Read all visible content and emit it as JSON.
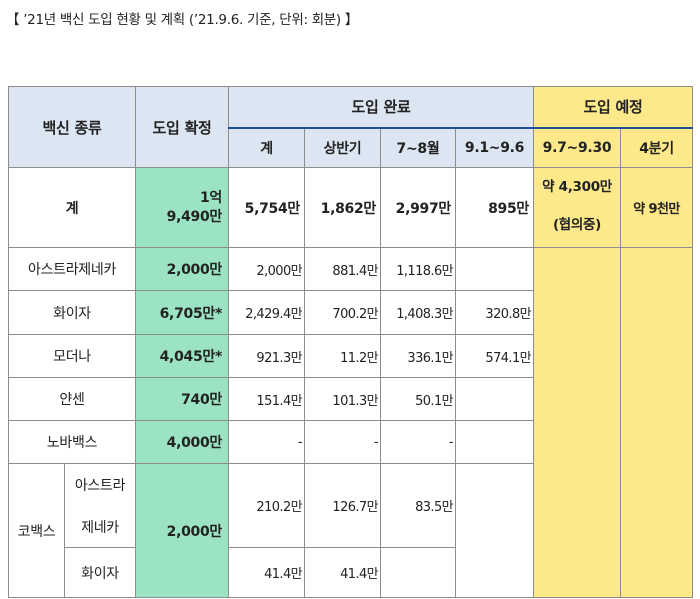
{
  "title": "【 ’21년 백신 도입 현황 및 계획 (’21.9.6. 기준, 단위: 회분) 】",
  "headers": {
    "vaccine_type": "백신 종류",
    "confirmed": "도입 확정",
    "completed": "도입 완료",
    "planned": "도입 예정",
    "sub_total": "계",
    "sub_h1": "상반기",
    "sub_jul_aug": "7~8월",
    "sub_sep1_6": "9.1~9.6",
    "sub_sep7_30": "9.7~9.30",
    "sub_q4": "4분기"
  },
  "total_row": {
    "label": "계",
    "confirmed_line1": "1억",
    "confirmed_line2": "9,490만",
    "total": "5,754만",
    "h1": "1,862만",
    "jul_aug": "2,997만",
    "sep1_6": "895만",
    "sep7_30_line1": "약 4,300만",
    "sep7_30_line2": "(협의중)",
    "q4": "약 9천만"
  },
  "rows": [
    {
      "name": "아스트라제네카",
      "confirmed": "2,000만",
      "total": "2,000만",
      "h1": "881.4만",
      "jul_aug": "1,118.6만",
      "sep1_6": ""
    },
    {
      "name": "화이자",
      "confirmed": "6,705만*",
      "total": "2,429.4만",
      "h1": "700.2만",
      "jul_aug": "1,408.3만",
      "sep1_6": "320.8만"
    },
    {
      "name": "모더나",
      "confirmed": "4,045만*",
      "total": "921.3만",
      "h1": "11.2만",
      "jul_aug": "336.1만",
      "sep1_6": "574.1만"
    },
    {
      "name": "얀센",
      "confirmed": "740만",
      "total": "151.4만",
      "h1": "101.3만",
      "jul_aug": "50.1만",
      "sep1_6": ""
    },
    {
      "name": "노바백스",
      "confirmed": "4,000만",
      "total": "-",
      "h1": "-",
      "jul_aug": "-",
      "sep1_6": ""
    }
  ],
  "covax": {
    "group_label": "코백스",
    "confirmed": "2,000만",
    "sub": [
      {
        "name_line1": "아스트라",
        "name_line2": "제네카",
        "total": "210.2만",
        "h1": "126.7만",
        "jul_aug": "83.5만",
        "sep1_6": ""
      },
      {
        "name": "화이자",
        "total": "41.4만",
        "h1": "41.4만",
        "jul_aug": "",
        "sep1_6": ""
      }
    ]
  }
}
